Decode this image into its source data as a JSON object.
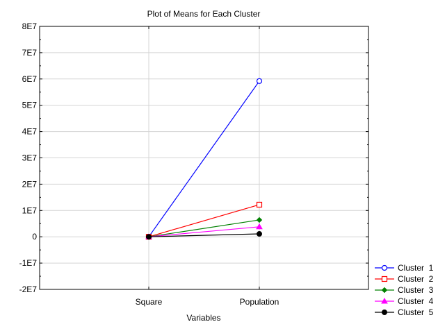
{
  "chart_data": {
    "type": "line",
    "title": "Plot of Means for Each Cluster",
    "xlabel": "Variables",
    "ylabel": "",
    "categories": [
      "Square",
      "Population"
    ],
    "ylim": [
      -20000000,
      80000000
    ],
    "yticks": [
      -20000000,
      -10000000,
      0,
      10000000,
      20000000,
      30000000,
      40000000,
      50000000,
      60000000,
      70000000,
      80000000
    ],
    "ytick_labels": [
      "-2E7",
      "-1E7",
      "0",
      "1E7",
      "2E7",
      "3E7",
      "4E7",
      "5E7",
      "6E7",
      "7E7",
      "8E7"
    ],
    "grid": true,
    "legend_position": "bottom-right outside",
    "series": [
      {
        "name": "Cluster  1",
        "values": [
          0,
          59200000
        ],
        "color": "#0000ff",
        "marker": "circle-open"
      },
      {
        "name": "Cluster  2",
        "values": [
          0,
          12200000
        ],
        "color": "#ff0000",
        "marker": "square-open"
      },
      {
        "name": "Cluster  3",
        "values": [
          0,
          6400000
        ],
        "color": "#008000",
        "marker": "diamond"
      },
      {
        "name": "Cluster  4",
        "values": [
          0,
          3800000
        ],
        "color": "#ff00ff",
        "marker": "triangle"
      },
      {
        "name": "Cluster  5",
        "values": [
          0,
          1100000
        ],
        "color": "#000000",
        "marker": "circle-filled"
      }
    ]
  }
}
